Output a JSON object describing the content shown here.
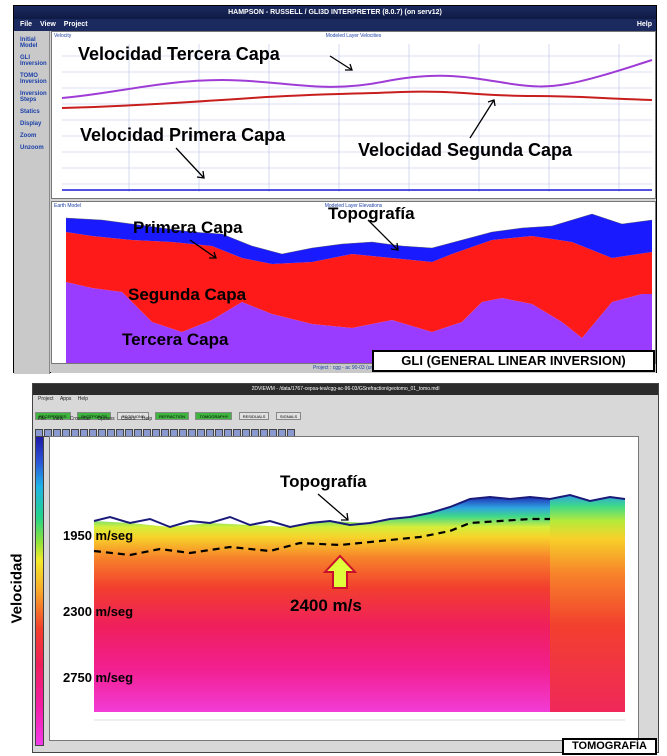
{
  "gli_window": {
    "title": "HAMPSON - RUSSELL / GLI3D INTERPRETER (8.0.7) (on serv12)",
    "menu": [
      "File",
      "View",
      "Project"
    ],
    "help": "Help",
    "sidebar": [
      "Initial Model",
      "GLI Inversion",
      "TOMO Inversion",
      "Inversion Steps",
      "Statics",
      "Display",
      "Zoom",
      "Unzoom"
    ],
    "panel1_left": "Velocity",
    "panel1_center": "Modeled Layer Velocities",
    "panel2_left": "Earth Model",
    "panel2_center": "Modeled Layer Elevations",
    "status": "Project : cgg - ac 90-03 (unus",
    "annotations": {
      "tercera_vel": "Velocidad Tercera Capa",
      "primera_vel": "Velocidad Primera Capa",
      "segunda_vel": "Velocidad Segunda Capa",
      "primera_capa": "Primera Capa",
      "topografia": "Topografía",
      "segunda_capa": "Segunda Capa",
      "tercera_capa": "Tercera Capa"
    },
    "box_label": "GLI (GENERAL LINEAR INVERSION)"
  },
  "tomo_window": {
    "title": "2DVIEWM - /data/1767-cepsa-tea/cgg-ac-96-03/GSrefraction/geotomo_01_tomo.mdl",
    "menu": [
      "Project",
      "Apps",
      "Help"
    ],
    "tabs": [
      "RECEPTORES",
      "SHOTPOINTS",
      "GEOPHONE",
      "REFRACTION",
      "TOMOGRAPHY",
      "RESIDUALS",
      "SIGNALS"
    ],
    "menu2": [
      "File",
      "View",
      "Crosshair",
      "Options",
      "Colors",
      "Help"
    ],
    "annotations": {
      "topografia": "Topografía",
      "v1950": "1950 m/seg",
      "v2300": "2300 m/seg",
      "v2750": "2750 m/seg",
      "v2400": "2400 m/s",
      "velocidad": "Velocidad"
    },
    "box_label": "TOMOGRAFÍA"
  },
  "colors": {
    "purple_line": "#a03cd6",
    "red_line": "#c81e1e",
    "blue_line": "#1a1ad8",
    "layer_blue": "#1a1aff",
    "layer_red": "#ff1a1a",
    "layer_purple": "#9a3cff"
  }
}
